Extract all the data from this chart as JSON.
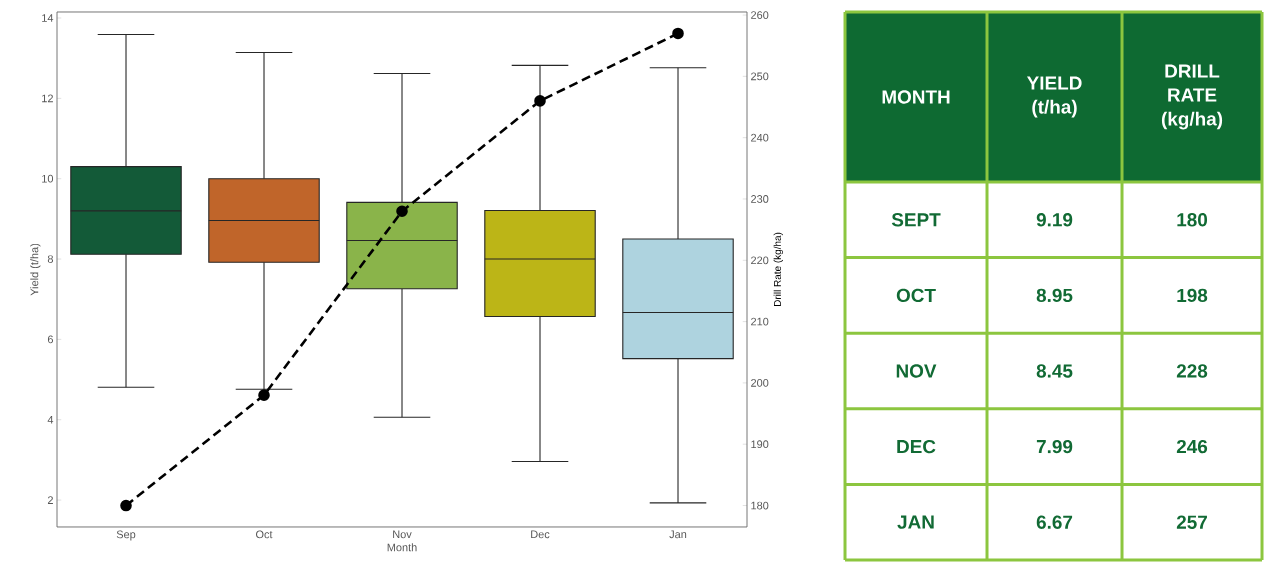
{
  "chart_data": [
    {
      "type": "box",
      "categories": [
        "Sep",
        "Oct",
        "Nov",
        "Dec",
        "Jan"
      ],
      "xlabel": "Month",
      "ylabel": "Yield (t/ha)",
      "y2label": "Drill Rate (kg/ha)",
      "ylim": [
        1.33,
        14.15
      ],
      "yticks": [
        2,
        4,
        6,
        8,
        10,
        12,
        14
      ],
      "y2lim": [
        176.5,
        260.5
      ],
      "y2ticks": [
        180,
        190,
        200,
        210,
        220,
        230,
        240,
        250,
        260
      ],
      "series": [
        {
          "type": "box",
          "colors": [
            "#135a38",
            "#c0652a",
            "#8ab44a",
            "#bcb517",
            "#aed3df"
          ],
          "boxes": [
            {
              "low": 4.81,
              "q1": 8.12,
              "median": 9.2,
              "q3": 10.3,
              "high": 13.59
            },
            {
              "low": 4.76,
              "q1": 7.92,
              "median": 8.96,
              "q3": 10.0,
              "high": 13.14
            },
            {
              "low": 4.06,
              "q1": 7.26,
              "median": 8.46,
              "q3": 9.41,
              "high": 12.62
            },
            {
              "low": 2.96,
              "q1": 6.57,
              "median": 8.0,
              "q3": 9.21,
              "high": 12.82
            },
            {
              "low": 1.93,
              "q1": 5.52,
              "median": 6.67,
              "q3": 8.5,
              "high": 12.76
            }
          ]
        },
        {
          "type": "line",
          "axis": "y2",
          "color": "#000000",
          "marker": "circle",
          "line_style": "dashed",
          "values": [
            180,
            198,
            228,
            246,
            257
          ]
        }
      ]
    },
    {
      "type": "other",
      "xlabel": "MONTH",
      "categories": [
        "SEPT",
        "OCT",
        "NOV",
        "DEC",
        "JAN"
      ],
      "data_labels": true,
      "series": [
        {
          "name": "YIELD (t/ha)",
          "values": [
            9.19,
            8.95,
            8.45,
            7.99,
            6.67
          ]
        },
        {
          "name": "DRILL RATE (kg/ha)",
          "values": [
            180,
            198,
            228,
            246,
            257
          ]
        }
      ]
    }
  ]
}
